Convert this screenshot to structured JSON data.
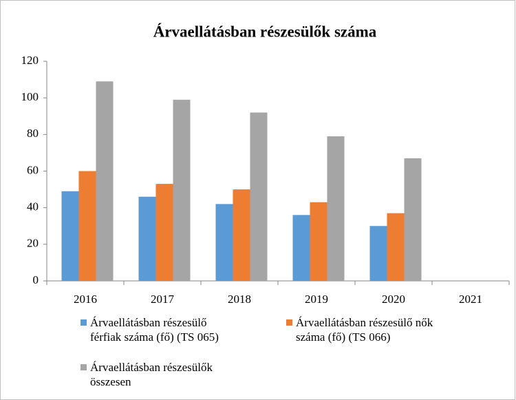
{
  "chart_data": {
    "type": "bar",
    "title": "Árvaellátásban részesülők száma",
    "categories": [
      "2016",
      "2017",
      "2018",
      "2019",
      "2020",
      "2021"
    ],
    "series": [
      {
        "name": "Árvaellátásban részesülő férfiak száma (fő) (TS 065)",
        "color": "#5b9bd5",
        "values": [
          49,
          46,
          42,
          36,
          30,
          null
        ]
      },
      {
        "name": "Árvaellátásban részesülő nők száma (fő) (TS 066)",
        "color": "#ed7d31",
        "values": [
          60,
          53,
          50,
          43,
          37,
          null
        ]
      },
      {
        "name": "Árvaellátásban részesülők összesen",
        "color": "#a5a5a5",
        "values": [
          109,
          99,
          92,
          79,
          67,
          null
        ]
      }
    ],
    "ylim": [
      0,
      120
    ],
    "yticks": [
      0,
      20,
      40,
      60,
      80,
      100,
      120
    ],
    "grid": false
  }
}
